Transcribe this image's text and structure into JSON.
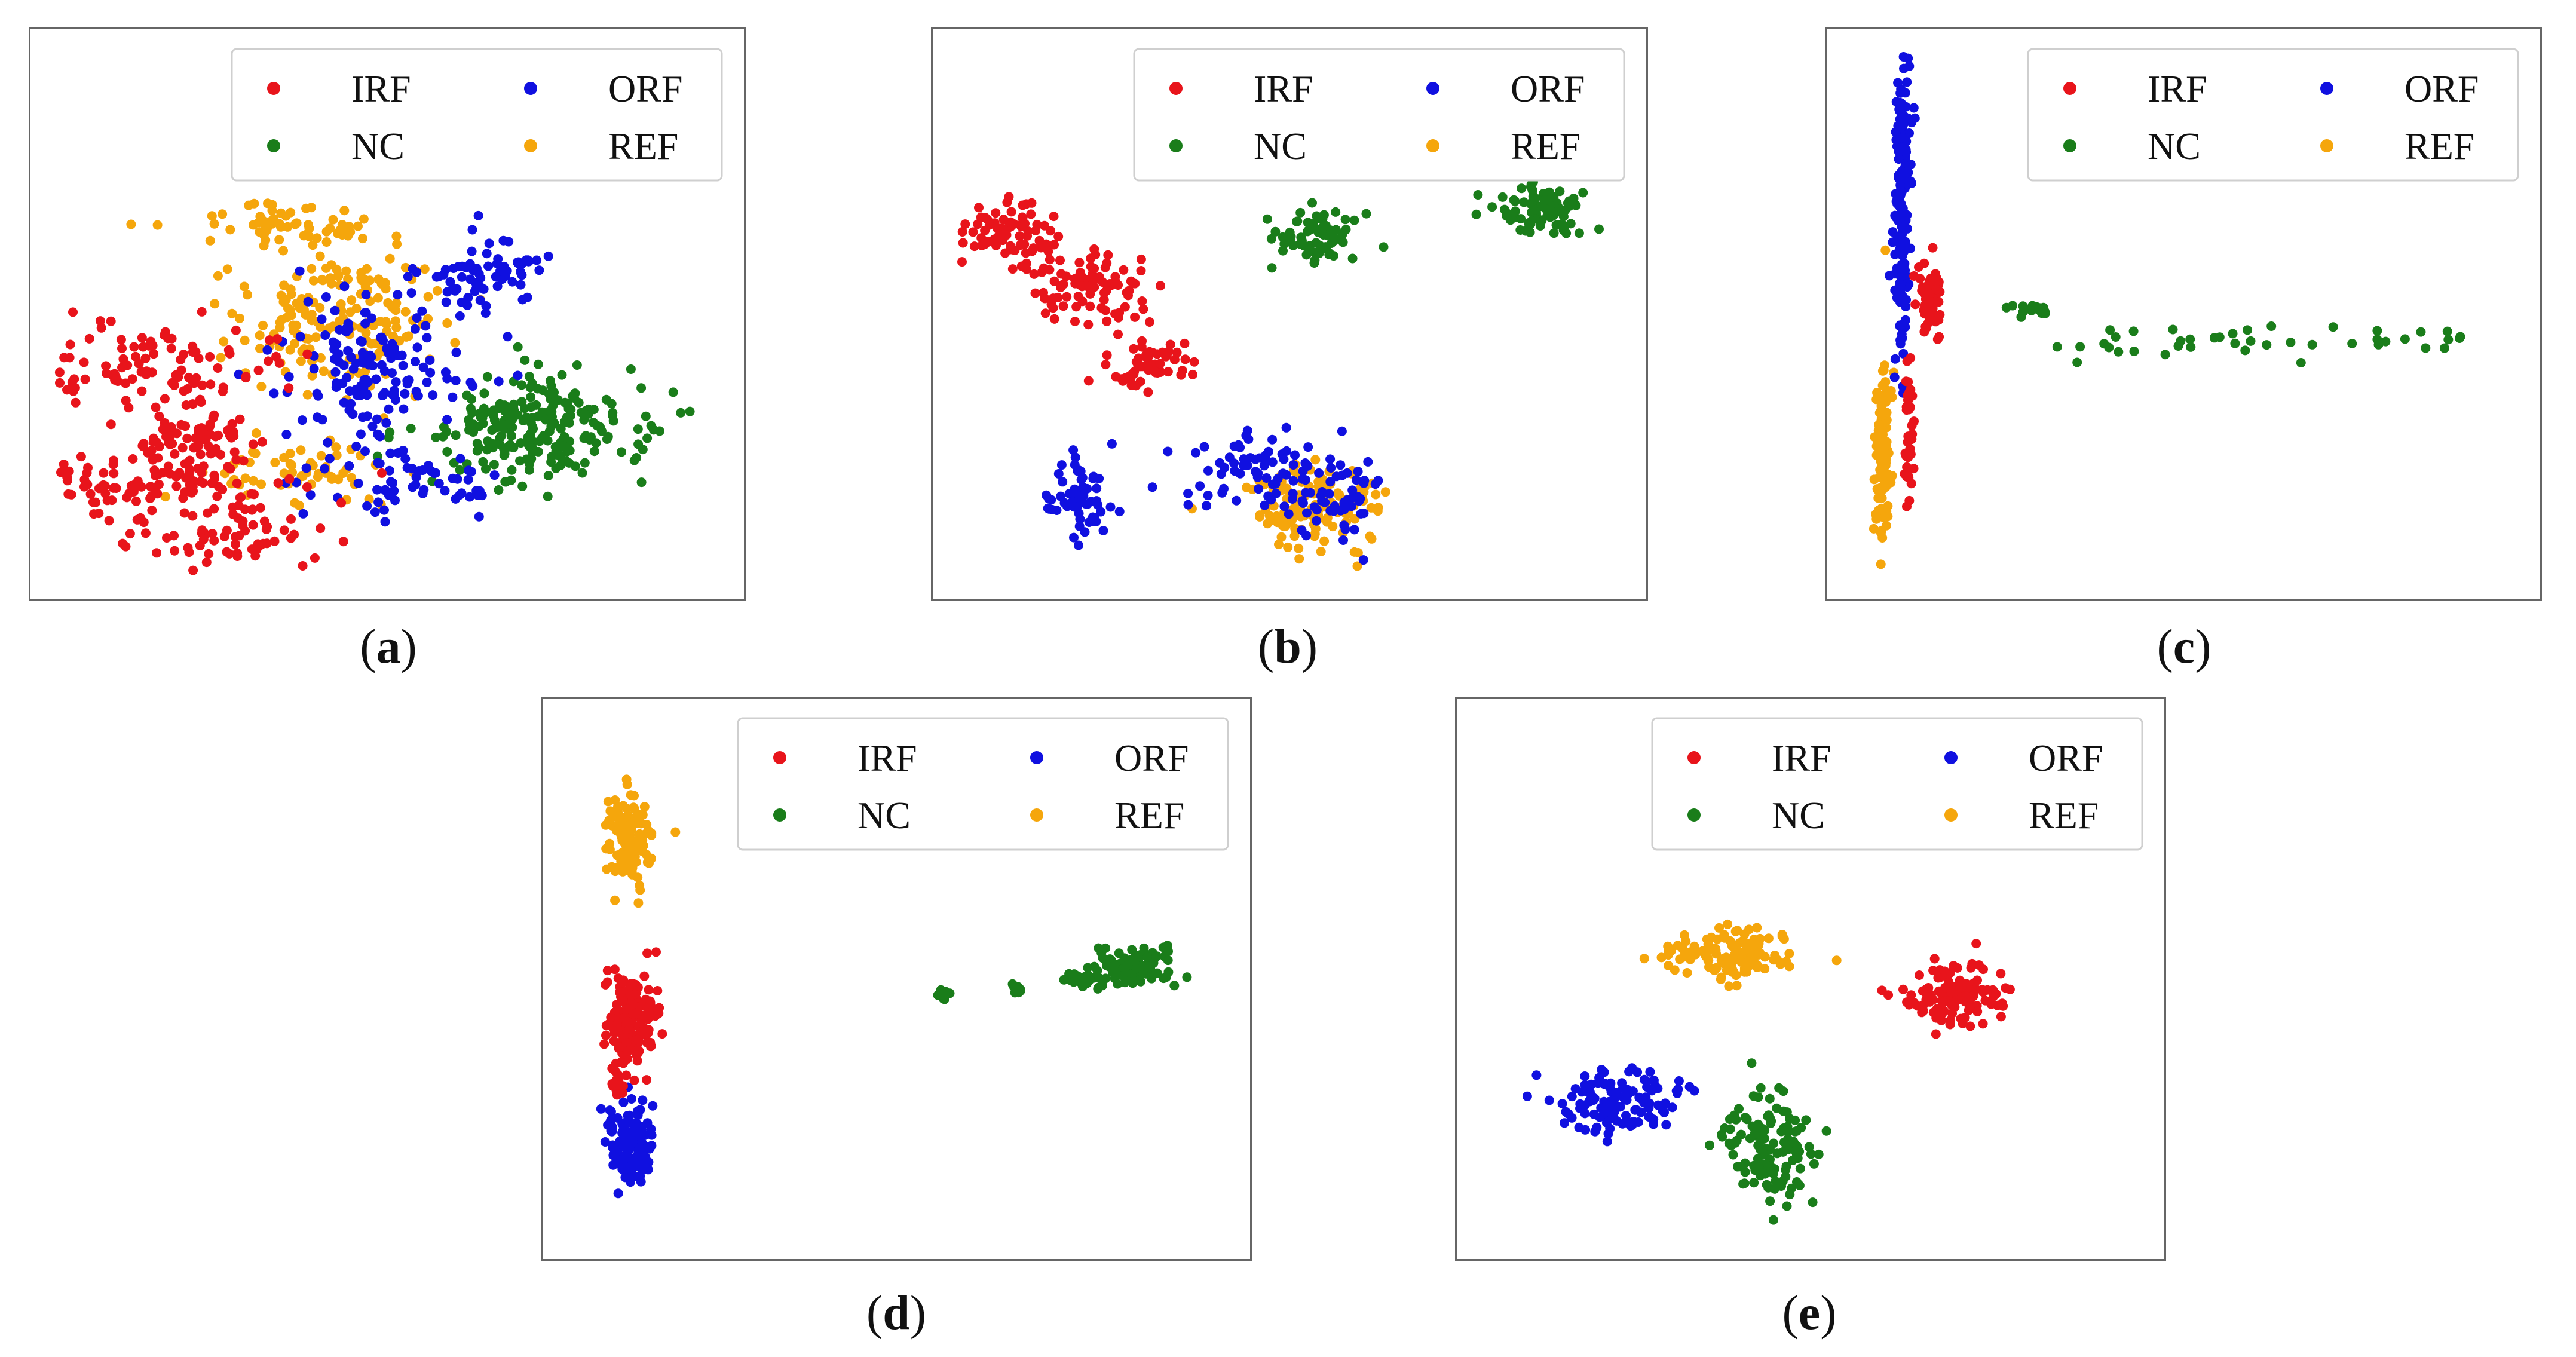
{
  "colors": {
    "IRF": "#e8141b",
    "ORF": "#1010e0",
    "NC": "#1a7d1a",
    "REF": "#f5a60c"
  },
  "legend": {
    "irf": "IRF",
    "orf": "ORF",
    "nc": "NC",
    "ref": "REF"
  },
  "captions": {
    "a": "a",
    "b": "b",
    "c": "c",
    "d": "d",
    "e": "e"
  },
  "chart_data": [
    {
      "type": "scatter",
      "panel": "a",
      "legend_placement": "top-right",
      "series": [
        {
          "name": "IRF",
          "clusters": [
            [
              0.14,
              0.4,
              0.22,
              0.07,
              0.26
            ],
            [
              0.14,
              0.17,
              0.22,
              0.06,
              0.28
            ],
            [
              0.21,
              0.27,
              0.1,
              0.06,
              0.17
            ],
            [
              0.25,
              0.07,
              0.14,
              0.06,
              0.14
            ]
          ]
        },
        {
          "name": "ORF",
          "clusters": [
            [
              0.48,
              0.4,
              0.15,
              0.15,
              0.35
            ],
            [
              0.65,
              0.58,
              0.1,
              0.07,
              0.16
            ],
            [
              0.52,
              0.18,
              0.16,
              0.06,
              0.15
            ]
          ]
        },
        {
          "name": "NC",
          "clusters": [
            [
              0.73,
              0.28,
              0.17,
              0.1,
              0.55
            ]
          ]
        },
        {
          "name": "REF",
          "clusters": [
            [
              0.42,
              0.5,
              0.18,
              0.14,
              0.4
            ],
            [
              0.37,
              0.2,
              0.12,
              0.05,
              0.14
            ],
            [
              0.34,
              0.67,
              0.12,
              0.04,
              0.14
            ]
          ]
        }
      ]
    },
    {
      "type": "scatter",
      "panel": "b",
      "legend_placement": "top-right",
      "series": [
        {
          "name": "IRF",
          "clusters": [
            [
              0.08,
              0.66,
              0.07,
              0.06,
              0.18
            ],
            [
              0.2,
              0.55,
              0.09,
              0.08,
              0.22
            ],
            [
              0.29,
              0.4,
              0.07,
              0.05,
              0.14
            ]
          ]
        },
        {
          "name": "ORF",
          "clusters": [
            [
              0.18,
              0.15,
              0.05,
              0.09,
              0.14
            ],
            [
              0.45,
              0.22,
              0.11,
              0.07,
              0.16
            ],
            [
              0.58,
              0.15,
              0.08,
              0.08,
              0.14
            ]
          ]
        },
        {
          "name": "NC",
          "clusters": [
            [
              0.55,
              0.65,
              0.07,
              0.05,
              0.18
            ],
            [
              0.87,
              0.7,
              0.07,
              0.05,
              0.2
            ]
          ]
        },
        {
          "name": "REF",
          "clusters": [
            [
              0.54,
              0.13,
              0.1,
              0.08,
              0.32
            ]
          ]
        }
      ]
    },
    {
      "type": "scatter",
      "panel": "c",
      "legend_placement": "top-right",
      "series": [
        {
          "name": "IRF",
          "clusters": [
            [
              0.12,
              0.53,
              0.015,
              0.07,
              0.16
            ],
            [
              0.09,
              0.26,
              0.008,
              0.14,
              0.09
            ]
          ]
        },
        {
          "name": "ORF",
          "clusters": [
            [
              0.08,
              0.7,
              0.012,
              0.3,
              0.45
            ]
          ]
        },
        {
          "name": "NC",
          "clusters": [
            [
              0.62,
              0.45,
              0.34,
              0.03,
              0.1
            ],
            [
              0.28,
              0.51,
              0.04,
              0.01,
              0.05
            ]
          ]
        },
        {
          "name": "REF",
          "clusters": [
            [
              0.05,
              0.25,
              0.012,
              0.18,
              0.28
            ]
          ]
        }
      ]
    },
    {
      "type": "scatter",
      "panel": "d",
      "legend_placement": "top-right",
      "series": [
        {
          "name": "IRF",
          "clusters": [
            [
              0.1,
              0.42,
              0.04,
              0.09,
              0.38
            ],
            [
              0.08,
              0.3,
              0.01,
              0.03,
              0.04
            ]
          ]
        },
        {
          "name": "ORF",
          "clusters": [
            [
              0.1,
              0.18,
              0.035,
              0.08,
              0.32
            ]
          ]
        },
        {
          "name": "NC",
          "clusters": [
            [
              0.86,
              0.52,
              0.06,
              0.04,
              0.22
            ],
            [
              0.57,
              0.47,
              0.01,
              0.01,
              0.04
            ],
            [
              0.68,
              0.48,
              0.01,
              0.01,
              0.03
            ],
            [
              0.78,
              0.5,
              0.03,
              0.02,
              0.06
            ]
          ]
        },
        {
          "name": "REF",
          "clusters": [
            [
              0.1,
              0.78,
              0.035,
              0.09,
              0.28
            ]
          ]
        }
      ]
    },
    {
      "type": "scatter",
      "panel": "e",
      "legend_placement": "top-right",
      "series": [
        {
          "name": "IRF",
          "clusters": [
            [
              0.72,
              0.47,
              0.08,
              0.06,
              0.3
            ]
          ]
        },
        {
          "name": "ORF",
          "clusters": [
            [
              0.21,
              0.26,
              0.1,
              0.06,
              0.3
            ]
          ]
        },
        {
          "name": "NC",
          "clusters": [
            [
              0.44,
              0.18,
              0.07,
              0.1,
              0.3
            ]
          ]
        },
        {
          "name": "REF",
          "clusters": [
            [
              0.37,
              0.55,
              0.1,
              0.05,
              0.3
            ]
          ]
        }
      ]
    }
  ]
}
